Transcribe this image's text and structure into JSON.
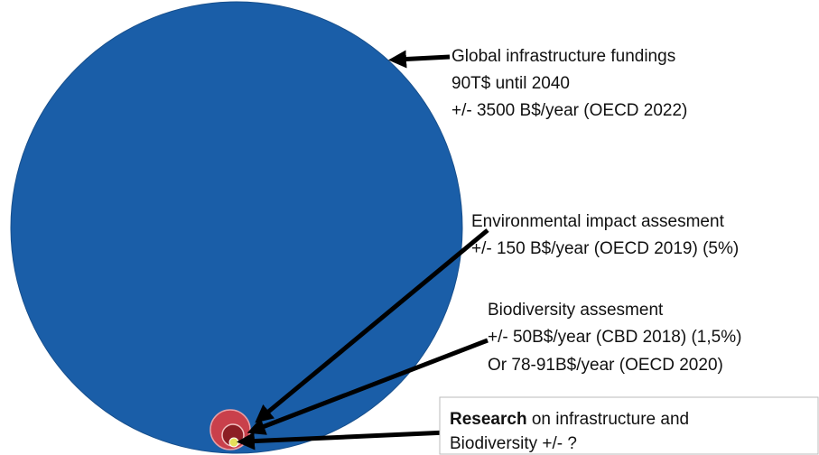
{
  "annotations": [
    {
      "lines": [
        "Global infrastructure fundings",
        "90T$ until 2040",
        "+/- 3500 B$/year (OECD 2022)"
      ]
    },
    {
      "lines": [
        "Environmental impact assesment",
        "+/- 150 B$/year (OECD 2019) (5%)"
      ]
    },
    {
      "lines": [
        "Biodiversity assesment",
        "+/- 50B$/year (CBD 2018) (1,5%)",
        "Or 78-91B$/year (OECD 2020)"
      ]
    }
  ],
  "research_box": {
    "bold": "Research",
    "line1": " on infrastructure and",
    "line2": "Biodiversity +/- ?"
  }
}
